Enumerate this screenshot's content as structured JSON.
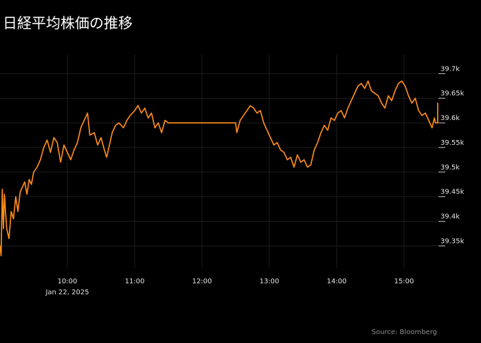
{
  "title": "日経平均株価の推移",
  "source": "Source: Bloomberg",
  "colors": {
    "background": "#000000",
    "line": "#ff8c1a",
    "grid": "#1e1e1e",
    "text": "#e6e6e6"
  },
  "chart_data": {
    "type": "line",
    "title": "日経平均株価の推移",
    "xlabel": "",
    "ylabel": "",
    "date": "Jan 22, 2025",
    "xlim": [
      "09:00",
      "15:30"
    ],
    "ylim": [
      39320,
      39720
    ],
    "grid": true,
    "legend": "none",
    "x_ticks": [
      {
        "label": "10:00",
        "sub": "Jan 22, 2025"
      },
      {
        "label": "11:00",
        "sub": ""
      },
      {
        "label": "12:00",
        "sub": ""
      },
      {
        "label": "13:00",
        "sub": ""
      },
      {
        "label": "14:00",
        "sub": ""
      },
      {
        "label": "15:00",
        "sub": ""
      }
    ],
    "y_ticks": [
      {
        "value": 39350,
        "label": "39.35k"
      },
      {
        "value": 39400,
        "label": "39.4k"
      },
      {
        "value": 39450,
        "label": "39.45k"
      },
      {
        "value": 39500,
        "label": "39.5k"
      },
      {
        "value": 39550,
        "label": "39.55k"
      },
      {
        "value": 39600,
        "label": "39.6k"
      },
      {
        "value": 39650,
        "label": "39.65k"
      },
      {
        "value": 39700,
        "label": "39.7k"
      }
    ],
    "series": [
      {
        "name": "",
        "color": "#ff8c1a",
        "points": [
          [
            "09:00",
            39350
          ],
          [
            "09:01",
            39330
          ],
          [
            "09:02",
            39465
          ],
          [
            "09:03",
            39385
          ],
          [
            "09:04",
            39455
          ],
          [
            "09:05",
            39415
          ],
          [
            "09:06",
            39385
          ],
          [
            "09:08",
            39365
          ],
          [
            "09:10",
            39420
          ],
          [
            "09:12",
            39405
          ],
          [
            "09:14",
            39450
          ],
          [
            "09:16",
            39420
          ],
          [
            "09:18",
            39460
          ],
          [
            "09:20",
            39470
          ],
          [
            "09:22",
            39480
          ],
          [
            "09:24",
            39455
          ],
          [
            "09:26",
            39485
          ],
          [
            "09:28",
            39475
          ],
          [
            "09:30",
            39500
          ],
          [
            "09:33",
            39510
          ],
          [
            "09:36",
            39525
          ],
          [
            "09:39",
            39550
          ],
          [
            "09:42",
            39565
          ],
          [
            "09:45",
            39540
          ],
          [
            "09:48",
            39570
          ],
          [
            "09:51",
            39560
          ],
          [
            "09:54",
            39520
          ],
          [
            "09:57",
            39555
          ],
          [
            "10:00",
            39540
          ],
          [
            "10:03",
            39525
          ],
          [
            "10:06",
            39545
          ],
          [
            "10:09",
            39560
          ],
          [
            "10:12",
            39590
          ],
          [
            "10:15",
            39605
          ],
          [
            "10:18",
            39620
          ],
          [
            "10:20",
            39575
          ],
          [
            "10:24",
            39580
          ],
          [
            "10:27",
            39555
          ],
          [
            "10:30",
            39570
          ],
          [
            "10:33",
            39545
          ],
          [
            "10:35",
            39530
          ],
          [
            "10:38",
            39560
          ],
          [
            "10:40",
            39580
          ],
          [
            "10:43",
            39595
          ],
          [
            "10:46",
            39600
          ],
          [
            "10:50",
            39590
          ],
          [
            "10:53",
            39605
          ],
          [
            "10:56",
            39615
          ],
          [
            "11:00",
            39625
          ],
          [
            "11:03",
            39635
          ],
          [
            "11:06",
            39620
          ],
          [
            "11:09",
            39630
          ],
          [
            "11:12",
            39610
          ],
          [
            "11:15",
            39620
          ],
          [
            "11:18",
            39590
          ],
          [
            "11:21",
            39600
          ],
          [
            "11:24",
            39580
          ],
          [
            "11:27",
            39605
          ],
          [
            "11:30",
            39600
          ],
          [
            "12:30",
            39600
          ],
          [
            "12:31",
            39580
          ],
          [
            "12:34",
            39605
          ],
          [
            "12:37",
            39615
          ],
          [
            "12:40",
            39625
          ],
          [
            "12:43",
            39635
          ],
          [
            "12:46",
            39630
          ],
          [
            "12:49",
            39620
          ],
          [
            "12:52",
            39625
          ],
          [
            "12:55",
            39600
          ],
          [
            "12:58",
            39585
          ],
          [
            "13:01",
            39570
          ],
          [
            "13:04",
            39555
          ],
          [
            "13:07",
            39560
          ],
          [
            "13:10",
            39545
          ],
          [
            "13:13",
            39540
          ],
          [
            "13:16",
            39525
          ],
          [
            "13:19",
            39530
          ],
          [
            "13:22",
            39510
          ],
          [
            "13:25",
            39535
          ],
          [
            "13:28",
            39520
          ],
          [
            "13:31",
            39525
          ],
          [
            "13:34",
            39510
          ],
          [
            "13:37",
            39515
          ],
          [
            "13:40",
            39545
          ],
          [
            "13:43",
            39560
          ],
          [
            "13:46",
            39580
          ],
          [
            "13:49",
            39595
          ],
          [
            "13:52",
            39585
          ],
          [
            "13:55",
            39610
          ],
          [
            "13:58",
            39605
          ],
          [
            "14:01",
            39620
          ],
          [
            "14:04",
            39625
          ],
          [
            "14:07",
            39610
          ],
          [
            "14:10",
            39630
          ],
          [
            "14:13",
            39645
          ],
          [
            "14:16",
            39660
          ],
          [
            "14:19",
            39675
          ],
          [
            "14:22",
            39680
          ],
          [
            "14:25",
            39670
          ],
          [
            "14:28",
            39685
          ],
          [
            "14:31",
            39665
          ],
          [
            "14:34",
            39660
          ],
          [
            "14:37",
            39655
          ],
          [
            "14:40",
            39640
          ],
          [
            "14:43",
            39630
          ],
          [
            "14:46",
            39655
          ],
          [
            "14:49",
            39645
          ],
          [
            "14:52",
            39665
          ],
          [
            "14:55",
            39680
          ],
          [
            "14:58",
            39685
          ],
          [
            "15:01",
            39675
          ],
          [
            "15:04",
            39655
          ],
          [
            "15:07",
            39640
          ],
          [
            "15:10",
            39650
          ],
          [
            "15:13",
            39625
          ],
          [
            "15:16",
            39615
          ],
          [
            "15:19",
            39620
          ],
          [
            "15:22",
            39605
          ],
          [
            "15:25",
            39590
          ],
          [
            "15:27",
            39610
          ],
          [
            "15:28",
            39600
          ],
          [
            "15:30",
            39600
          ],
          [
            "15:30",
            39640
          ]
        ]
      }
    ]
  }
}
